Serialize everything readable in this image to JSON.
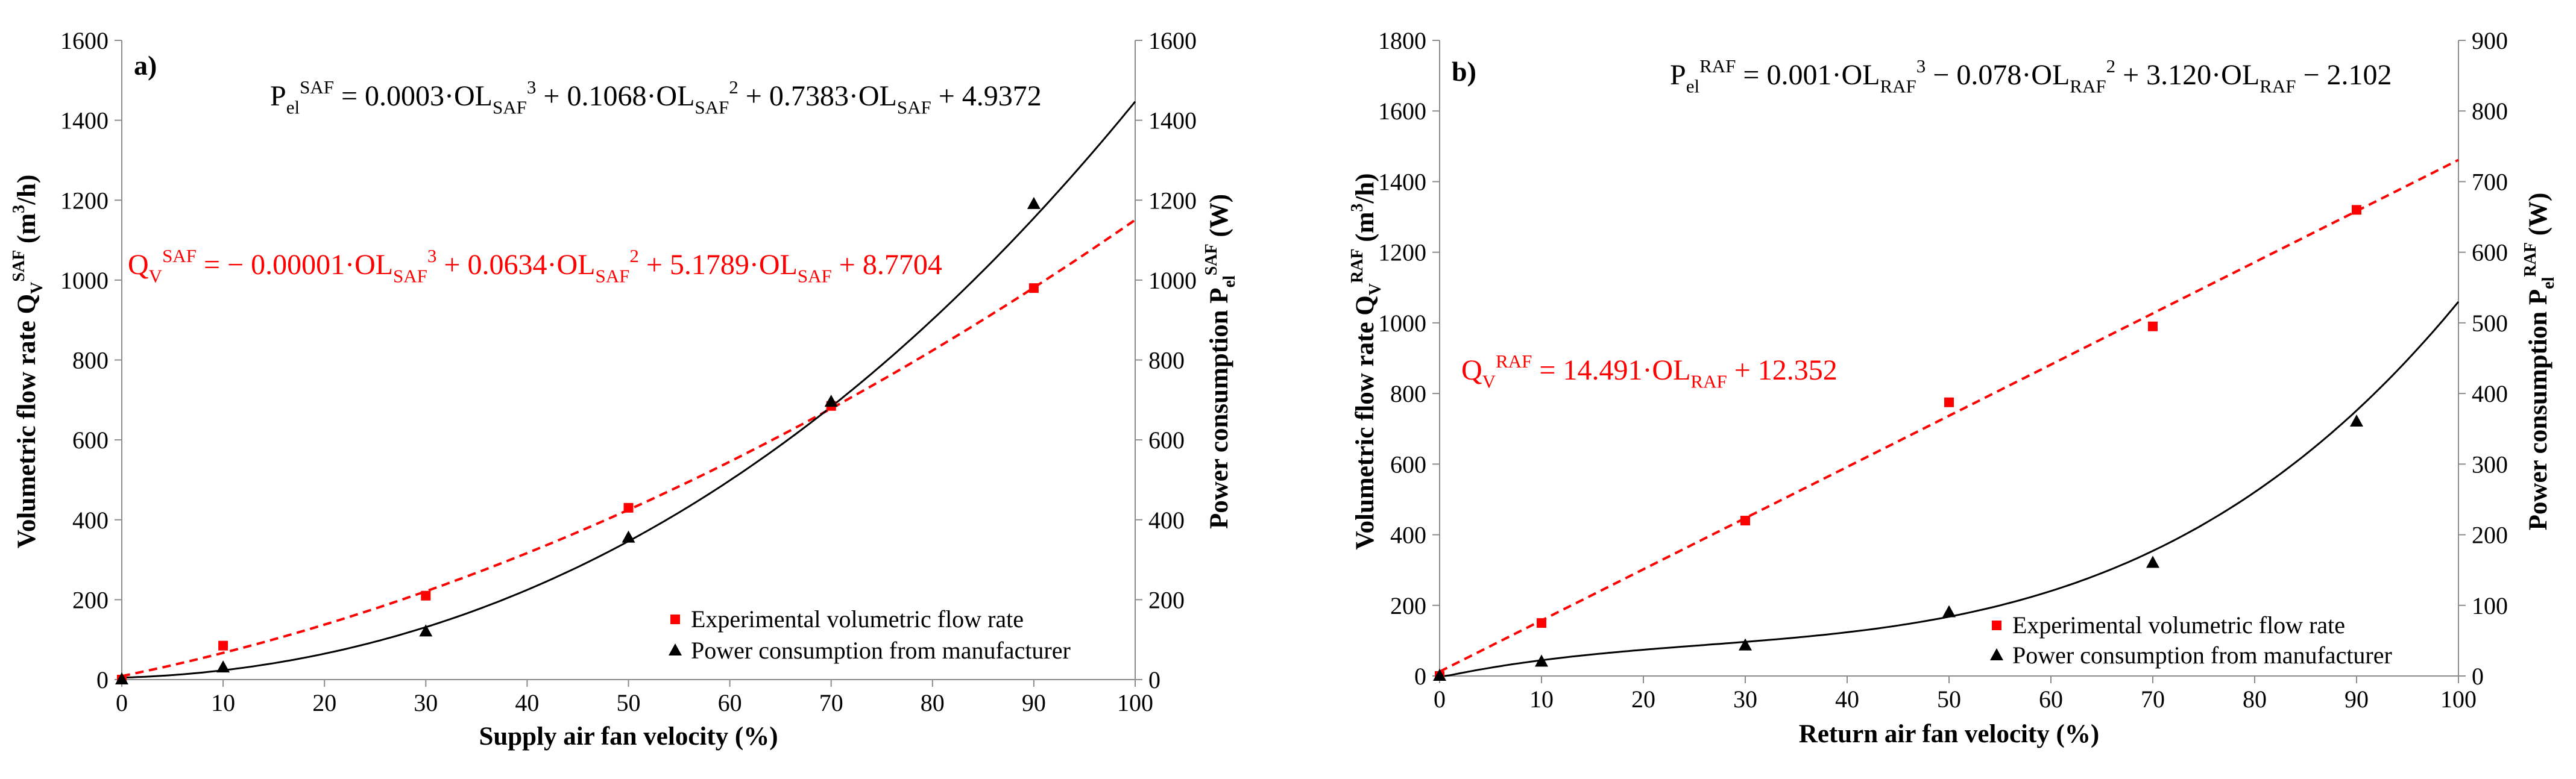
{
  "chart_data": [
    {
      "type": "scatter",
      "panel_label": "a)",
      "xlabel": "Supply air fan velocity (%)",
      "xlim": [
        0,
        100
      ],
      "x_ticks": [
        0,
        10,
        20,
        30,
        40,
        50,
        60,
        70,
        80,
        90,
        100
      ],
      "y_left": {
        "label_main": "Volumetric flow rate Q",
        "label_sub": "V",
        "label_sup": "SAF",
        "label_unit": " (m",
        "label_unit_sup": "3",
        "label_unit_end": "/h)",
        "ylim": [
          0,
          1600
        ],
        "ticks": [
          0,
          200,
          400,
          600,
          800,
          1000,
          1200,
          1400,
          1600
        ]
      },
      "y_right": {
        "label_main": "Power consumption P",
        "label_sub": "el",
        "label_sup": "SAF",
        "label_unit": " (W)",
        "ylim": [
          0,
          1600
        ],
        "ticks": [
          0,
          200,
          400,
          600,
          800,
          1000,
          1200,
          1400,
          1600
        ]
      },
      "series": [
        {
          "name": "Experimental volumetric flow rate",
          "marker": "square",
          "color": "#ff0000",
          "axis": "left",
          "x": [
            0,
            10,
            30,
            50,
            70,
            90
          ],
          "y": [
            0,
            85,
            210,
            430,
            685,
            980
          ],
          "fit": {
            "kind": "poly",
            "coeffs": [
              8.7704,
              5.1789,
              0.0634,
              -1e-05
            ],
            "dashed": true
          }
        },
        {
          "name": "Power consumption from manufacturer",
          "marker": "triangle",
          "color": "#000000",
          "axis": "right",
          "x": [
            0,
            10,
            30,
            50,
            70,
            90
          ],
          "y": [
            0,
            30,
            120,
            355,
            695,
            1190
          ],
          "fit": {
            "kind": "poly",
            "coeffs": [
              4.9372,
              0.7383,
              0.1068,
              0.0003
            ],
            "dashed": false
          }
        }
      ],
      "equations": {
        "power": {
          "color": "#000000",
          "parts": [
            {
              "t": "P"
            },
            {
              "t": "el",
              "s": "sub"
            },
            {
              "t": "SAF",
              "s": "sup"
            },
            {
              "t": " = 0.0003·OL"
            },
            {
              "t": "SAF",
              "s": "sub"
            },
            {
              "t": "3",
              "s": "sup"
            },
            {
              "t": " + 0.1068·OL"
            },
            {
              "t": "SAF",
              "s": "sub"
            },
            {
              "t": "2",
              "s": "sup"
            },
            {
              "t": " + 0.7383·OL"
            },
            {
              "t": "SAF",
              "s": "sub"
            },
            {
              "t": " + 4.9372"
            }
          ]
        },
        "flow": {
          "color": "#ff0000",
          "parts": [
            {
              "t": "Q"
            },
            {
              "t": "V",
              "s": "sub"
            },
            {
              "t": "SAF",
              "s": "sup"
            },
            {
              "t": " = − 0.00001·OL"
            },
            {
              "t": "SAF",
              "s": "sub"
            },
            {
              "t": "3",
              "s": "sup"
            },
            {
              "t": " + 0.0634·OL"
            },
            {
              "t": "SAF",
              "s": "sub"
            },
            {
              "t": "2",
              "s": "sup"
            },
            {
              "t": " + 5.1789·OL"
            },
            {
              "t": "SAF",
              "s": "sub"
            },
            {
              "t": " + 8.7704"
            }
          ]
        }
      },
      "legend": {
        "placement": "bottom-right",
        "entries": [
          "Experimental volumetric flow rate",
          "Power consumption from manufacturer"
        ]
      }
    },
    {
      "type": "scatter",
      "panel_label": "b)",
      "xlabel": "Return air fan velocity (%)",
      "xlim": [
        0,
        100
      ],
      "x_ticks": [
        0,
        10,
        20,
        30,
        40,
        50,
        60,
        70,
        80,
        90,
        100
      ],
      "y_left": {
        "label_main": "Volumetric flow rate Q",
        "label_sub": "V",
        "label_sup": "RAF",
        "label_unit": " (m",
        "label_unit_sup": "3",
        "label_unit_end": "/h)",
        "ylim": [
          0,
          1800
        ],
        "ticks": [
          0,
          200,
          400,
          600,
          800,
          1000,
          1200,
          1400,
          1600,
          1800
        ]
      },
      "y_right": {
        "label_main": "Power consumption P",
        "label_sub": "el",
        "label_sup": "RAF",
        "label_unit": " (W)",
        "ylim": [
          0,
          900
        ],
        "ticks": [
          0,
          100,
          200,
          300,
          400,
          500,
          600,
          700,
          800,
          900
        ]
      },
      "series": [
        {
          "name": "Experimental volumetric flow rate",
          "marker": "square",
          "color": "#ff0000",
          "axis": "left",
          "x": [
            0,
            10,
            30,
            50,
            70,
            90
          ],
          "y": [
            0,
            150,
            440,
            775,
            990,
            1320
          ],
          "fit": {
            "kind": "poly",
            "coeffs": [
              12.352,
              14.491
            ],
            "dashed": true
          }
        },
        {
          "name": "Power consumption from manufacturer",
          "marker": "triangle",
          "color": "#000000",
          "axis": "right",
          "x": [
            0,
            10,
            30,
            50,
            70,
            90
          ],
          "y": [
            0,
            20,
            43,
            90,
            160,
            360
          ],
          "fit": {
            "kind": "poly",
            "coeffs": [
              -2.102,
              3.12,
              -0.078,
              0.001
            ],
            "dashed": false
          }
        }
      ],
      "equations": {
        "power": {
          "color": "#000000",
          "parts": [
            {
              "t": "P"
            },
            {
              "t": "el",
              "s": "sub"
            },
            {
              "t": "RAF",
              "s": "sup"
            },
            {
              "t": " = 0.001·OL"
            },
            {
              "t": "RAF",
              "s": "sub"
            },
            {
              "t": "3",
              "s": "sup"
            },
            {
              "t": " − 0.078·OL"
            },
            {
              "t": "RAF",
              "s": "sub"
            },
            {
              "t": "2",
              "s": "sup"
            },
            {
              "t": " + 3.120·OL"
            },
            {
              "t": "RAF",
              "s": "sub"
            },
            {
              "t": " − 2.102"
            }
          ]
        },
        "flow": {
          "color": "#ff0000",
          "parts": [
            {
              "t": "Q"
            },
            {
              "t": "V",
              "s": "sub"
            },
            {
              "t": "RAF",
              "s": "sup"
            },
            {
              "t": " = 14.491·OL"
            },
            {
              "t": "RAF",
              "s": "sub"
            },
            {
              "t": " + 12.352"
            }
          ]
        }
      },
      "legend": {
        "placement": "bottom-right",
        "entries": [
          "Experimental volumetric flow rate",
          "Power consumption from manufacturer"
        ]
      }
    }
  ]
}
